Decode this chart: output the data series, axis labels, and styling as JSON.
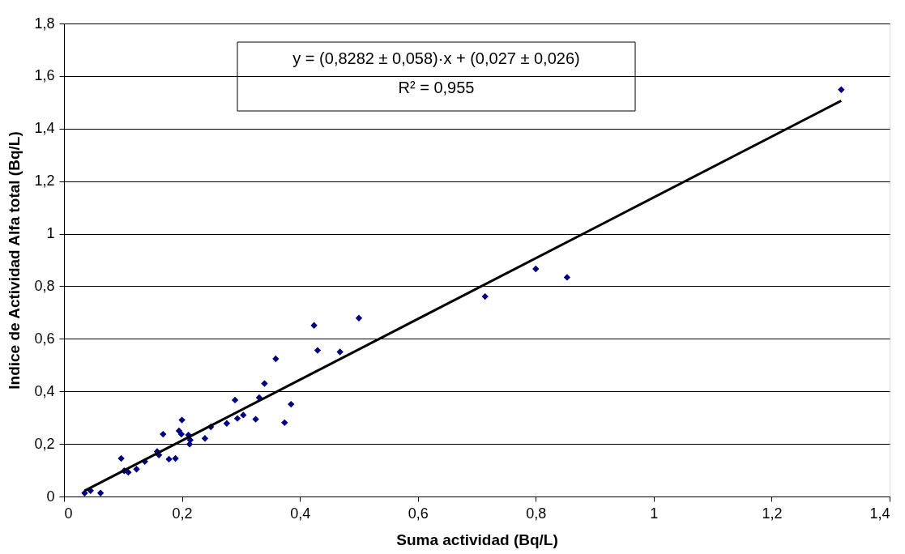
{
  "chart_data": {
    "type": "scatter",
    "xlabel": "Suma actividad (Bq/L)",
    "ylabel": "Indice de Actividad Alfa total (Bq/L)",
    "annotations": [
      "y = (0,8282 ± 0,058)·x + (0,027 ± 0,026)",
      "R² = 0,955"
    ],
    "xlim": [
      0,
      1.4
    ],
    "ylim": [
      0,
      1.8
    ],
    "xticks": [
      0,
      {
        "value": 0.2,
        "label": "0,2"
      },
      {
        "value": 0.4,
        "label": "0,4"
      },
      {
        "value": 0.6,
        "label": "0,6"
      },
      {
        "value": 0.8,
        "label": "0,8"
      },
      1,
      {
        "value": 1.2,
        "label": "1,2"
      },
      {
        "value": 1.4,
        "label": "1,4"
      }
    ],
    "yticks": [
      0,
      {
        "value": 0.2,
        "label": "0,2"
      },
      {
        "value": 0.4,
        "label": "0,4"
      },
      {
        "value": 0.6,
        "label": "0,6"
      },
      {
        "value": 0.8,
        "label": "0,8"
      },
      1,
      {
        "value": 1.2,
        "label": "1,2"
      },
      {
        "value": 1.4,
        "label": "1,4"
      },
      {
        "value": 1.6,
        "label": "1,6"
      },
      {
        "value": 1.8,
        "label": "1,8"
      }
    ],
    "grid": "y",
    "legend": false,
    "series": [
      {
        "type": "scatter",
        "marker": "diamond",
        "color": "#000080",
        "x": [
          0.035,
          0.045,
          0.062,
          0.097,
          0.102,
          0.109,
          0.123,
          0.137,
          0.158,
          0.161,
          0.168,
          0.178,
          0.189,
          0.195,
          0.2,
          0.199,
          0.211,
          0.213,
          0.214,
          0.239,
          0.249,
          0.276,
          0.29,
          0.294,
          0.304,
          0.325,
          0.331,
          0.34,
          0.359,
          0.374,
          0.385,
          0.424,
          0.43,
          0.468,
          0.5,
          0.714,
          0.8,
          0.853,
          1.318
        ],
        "values": [
          0.013,
          0.022,
          0.013,
          0.145,
          0.098,
          0.092,
          0.104,
          0.133,
          0.171,
          0.158,
          0.237,
          0.142,
          0.145,
          0.25,
          0.291,
          0.237,
          0.234,
          0.199,
          0.215,
          0.221,
          0.265,
          0.278,
          0.367,
          0.297,
          0.31,
          0.294,
          0.376,
          0.43,
          0.524,
          0.281,
          0.351,
          0.651,
          0.556,
          0.55,
          0.679,
          0.761,
          0.866,
          0.834,
          1.548
        ]
      },
      {
        "type": "line",
        "marker": "none",
        "color": "#000000",
        "line_style": "solid",
        "x": [
          0.035,
          1.318
        ],
        "values": [
          0.022,
          1.506
        ]
      }
    ]
  }
}
